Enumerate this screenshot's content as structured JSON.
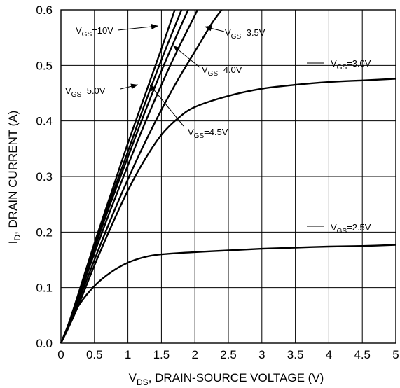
{
  "chart_data": {
    "type": "line",
    "xlabel": "V",
    "xlabel_sub": "DS",
    "xlabel_rest": ", DRAIN-SOURCE VOLTAGE (V)",
    "ylabel": "I",
    "ylabel_sub": "D",
    "ylabel_rest": ", DRAIN CURRENT (A)",
    "xlim": [
      0,
      5
    ],
    "ylim": [
      0,
      0.6
    ],
    "x_ticks": [
      "0",
      "0.5",
      "1",
      "1.5",
      "2",
      "2.5",
      "3",
      "3.5",
      "4",
      "4.5",
      "5"
    ],
    "y_ticks": [
      "0.0",
      "0.1",
      "0.2",
      "0.3",
      "0.4",
      "0.5",
      "0.6"
    ],
    "grid": true,
    "series": [
      {
        "name": "VGS=10V",
        "label_main": "V",
        "label_sub": "GS",
        "label_rest": "=10V",
        "points": [
          [
            0,
            0
          ],
          [
            0.1,
            0.03
          ],
          [
            0.25,
            0.085
          ],
          [
            0.5,
            0.18
          ],
          [
            0.75,
            0.27
          ],
          [
            1.0,
            0.36
          ],
          [
            1.25,
            0.445
          ],
          [
            1.5,
            0.53
          ],
          [
            1.7,
            0.6
          ]
        ]
      },
      {
        "name": "VGS=5.0V",
        "label_main": "V",
        "label_sub": "GS",
        "label_rest": "=5.0V",
        "points": [
          [
            0,
            0
          ],
          [
            0.1,
            0.03
          ],
          [
            0.25,
            0.083
          ],
          [
            0.5,
            0.175
          ],
          [
            0.75,
            0.262
          ],
          [
            1.0,
            0.345
          ],
          [
            1.25,
            0.43
          ],
          [
            1.5,
            0.51
          ],
          [
            1.75,
            0.585
          ],
          [
            1.8,
            0.6
          ]
        ]
      },
      {
        "name": "VGS=4.5V",
        "label_main": "V",
        "label_sub": "GS",
        "label_rest": "=4.5V",
        "points": [
          [
            0,
            0
          ],
          [
            0.1,
            0.03
          ],
          [
            0.25,
            0.08
          ],
          [
            0.5,
            0.17
          ],
          [
            0.75,
            0.255
          ],
          [
            1.0,
            0.335
          ],
          [
            1.25,
            0.415
          ],
          [
            1.5,
            0.49
          ],
          [
            1.75,
            0.56
          ],
          [
            1.9,
            0.6
          ]
        ]
      },
      {
        "name": "VGS=4.0V",
        "label_main": "V",
        "label_sub": "GS",
        "label_rest": "=4.0V",
        "points": [
          [
            0,
            0
          ],
          [
            0.1,
            0.03
          ],
          [
            0.25,
            0.077
          ],
          [
            0.5,
            0.162
          ],
          [
            0.75,
            0.243
          ],
          [
            1.0,
            0.32
          ],
          [
            1.25,
            0.395
          ],
          [
            1.5,
            0.465
          ],
          [
            1.75,
            0.53
          ],
          [
            2.0,
            0.59
          ],
          [
            2.03,
            0.6
          ]
        ]
      },
      {
        "name": "VGS=3.5V",
        "label_main": "V",
        "label_sub": "GS",
        "label_rest": "=3.5V",
        "points": [
          [
            0,
            0
          ],
          [
            0.1,
            0.028
          ],
          [
            0.25,
            0.072
          ],
          [
            0.5,
            0.15
          ],
          [
            0.75,
            0.225
          ],
          [
            1.0,
            0.295
          ],
          [
            1.25,
            0.36
          ],
          [
            1.5,
            0.42
          ],
          [
            1.75,
            0.475
          ],
          [
            2.0,
            0.525
          ],
          [
            2.25,
            0.575
          ],
          [
            2.4,
            0.6
          ]
        ]
      },
      {
        "name": "VGS=3.0V",
        "label_main": "V",
        "label_sub": "GS",
        "label_rest": "=3.0V",
        "points": [
          [
            0,
            0
          ],
          [
            0.1,
            0.025
          ],
          [
            0.25,
            0.065
          ],
          [
            0.5,
            0.14
          ],
          [
            0.75,
            0.21
          ],
          [
            1.0,
            0.275
          ],
          [
            1.25,
            0.33
          ],
          [
            1.5,
            0.375
          ],
          [
            1.75,
            0.405
          ],
          [
            2.0,
            0.425
          ],
          [
            2.5,
            0.445
          ],
          [
            3.0,
            0.458
          ],
          [
            3.5,
            0.465
          ],
          [
            4.0,
            0.47
          ],
          [
            4.5,
            0.473
          ],
          [
            5.0,
            0.476
          ]
        ]
      },
      {
        "name": "VGS=2.5V",
        "label_main": "V",
        "label_sub": "GS",
        "label_rest": "=2.5V",
        "points": [
          [
            0,
            0
          ],
          [
            0.1,
            0.028
          ],
          [
            0.25,
            0.065
          ],
          [
            0.5,
            0.103
          ],
          [
            0.75,
            0.128
          ],
          [
            1.0,
            0.145
          ],
          [
            1.25,
            0.155
          ],
          [
            1.5,
            0.16
          ],
          [
            2.0,
            0.164
          ],
          [
            2.5,
            0.167
          ],
          [
            3.0,
            0.17
          ],
          [
            3.5,
            0.172
          ],
          [
            4.0,
            0.174
          ],
          [
            4.5,
            0.175
          ],
          [
            5.0,
            0.177
          ]
        ]
      }
    ]
  }
}
